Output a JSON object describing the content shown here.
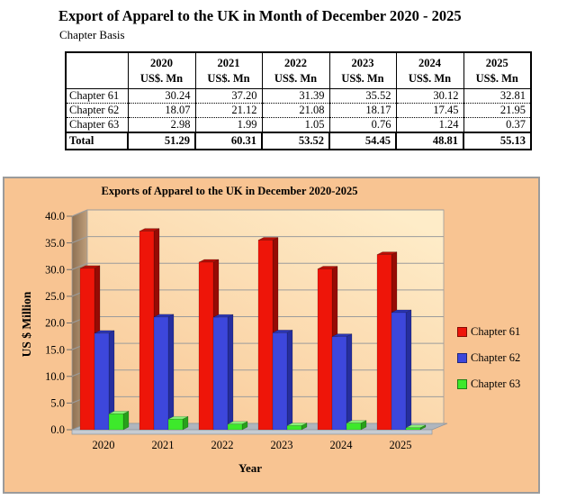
{
  "page": {
    "title": "Export of Apparel to the UK in Month of December 2020 - 2025",
    "subtitle": "Chapter Basis"
  },
  "table": {
    "corner_label": "",
    "columns": [
      {
        "year": "2020",
        "unit": "US$. Mn"
      },
      {
        "year": "2021",
        "unit": "US$. Mn"
      },
      {
        "year": "2022",
        "unit": "US$. Mn"
      },
      {
        "year": "2023",
        "unit": "US$. Mn"
      },
      {
        "year": "2024",
        "unit": "US$. Mn"
      },
      {
        "year": "2025",
        "unit": "US$. Mn"
      }
    ],
    "rows": [
      {
        "label": "Chapter 61",
        "values": [
          "30.24",
          "37.20",
          "31.39",
          "35.52",
          "30.12",
          "32.81"
        ]
      },
      {
        "label": "Chapter 62",
        "values": [
          "18.07",
          "21.12",
          "21.08",
          "18.17",
          "17.45",
          "21.95"
        ]
      },
      {
        "label": "Chapter 63",
        "values": [
          "2.98",
          "1.99",
          "1.05",
          "0.76",
          "1.24",
          "0.37"
        ]
      }
    ],
    "total_row": {
      "label": "Total",
      "values": [
        "51.29",
        "60.31",
        "53.52",
        "54.45",
        "48.81",
        "55.13"
      ]
    }
  },
  "chart_data": {
    "type": "bar",
    "style": "3d-clustered-column",
    "title": "Exports of Apparel to the UK in December 2020-2025",
    "xlabel": "Year",
    "ylabel": "US $ Million",
    "categories": [
      "2020",
      "2021",
      "2022",
      "2023",
      "2024",
      "2025"
    ],
    "series": [
      {
        "name": "Chapter 61",
        "color": "#ee1509",
        "side_color": "#960b04",
        "top_color": "#b81007",
        "values": [
          30.24,
          37.2,
          31.39,
          35.52,
          30.12,
          32.81
        ]
      },
      {
        "name": "Chapter 62",
        "color": "#3d47dc",
        "side_color": "#262e9e",
        "top_color": "#2b35b2",
        "values": [
          18.07,
          21.12,
          21.08,
          18.17,
          17.45,
          21.95
        ]
      },
      {
        "name": "Chapter 63",
        "color": "#3de92b",
        "side_color": "#28a01b",
        "top_color": "#8cf07a",
        "values": [
          2.98,
          1.99,
          1.05,
          0.76,
          1.24,
          0.37
        ]
      }
    ],
    "ylim": [
      0,
      40
    ],
    "ytick_step": 5,
    "ytick_decimals": 1,
    "grid": true,
    "legend_position": "right",
    "colors": {
      "plot_bg": "#f8c492",
      "back_wall_bottom": "#f8c795",
      "back_wall_top": "#feecc8",
      "side_wall_dark": "#8d7052",
      "side_wall_light": "#bf9f7c",
      "floor": "#afb6be",
      "floor_edge": "#c7ccd2",
      "grid_line": "#9c9c9c"
    }
  }
}
